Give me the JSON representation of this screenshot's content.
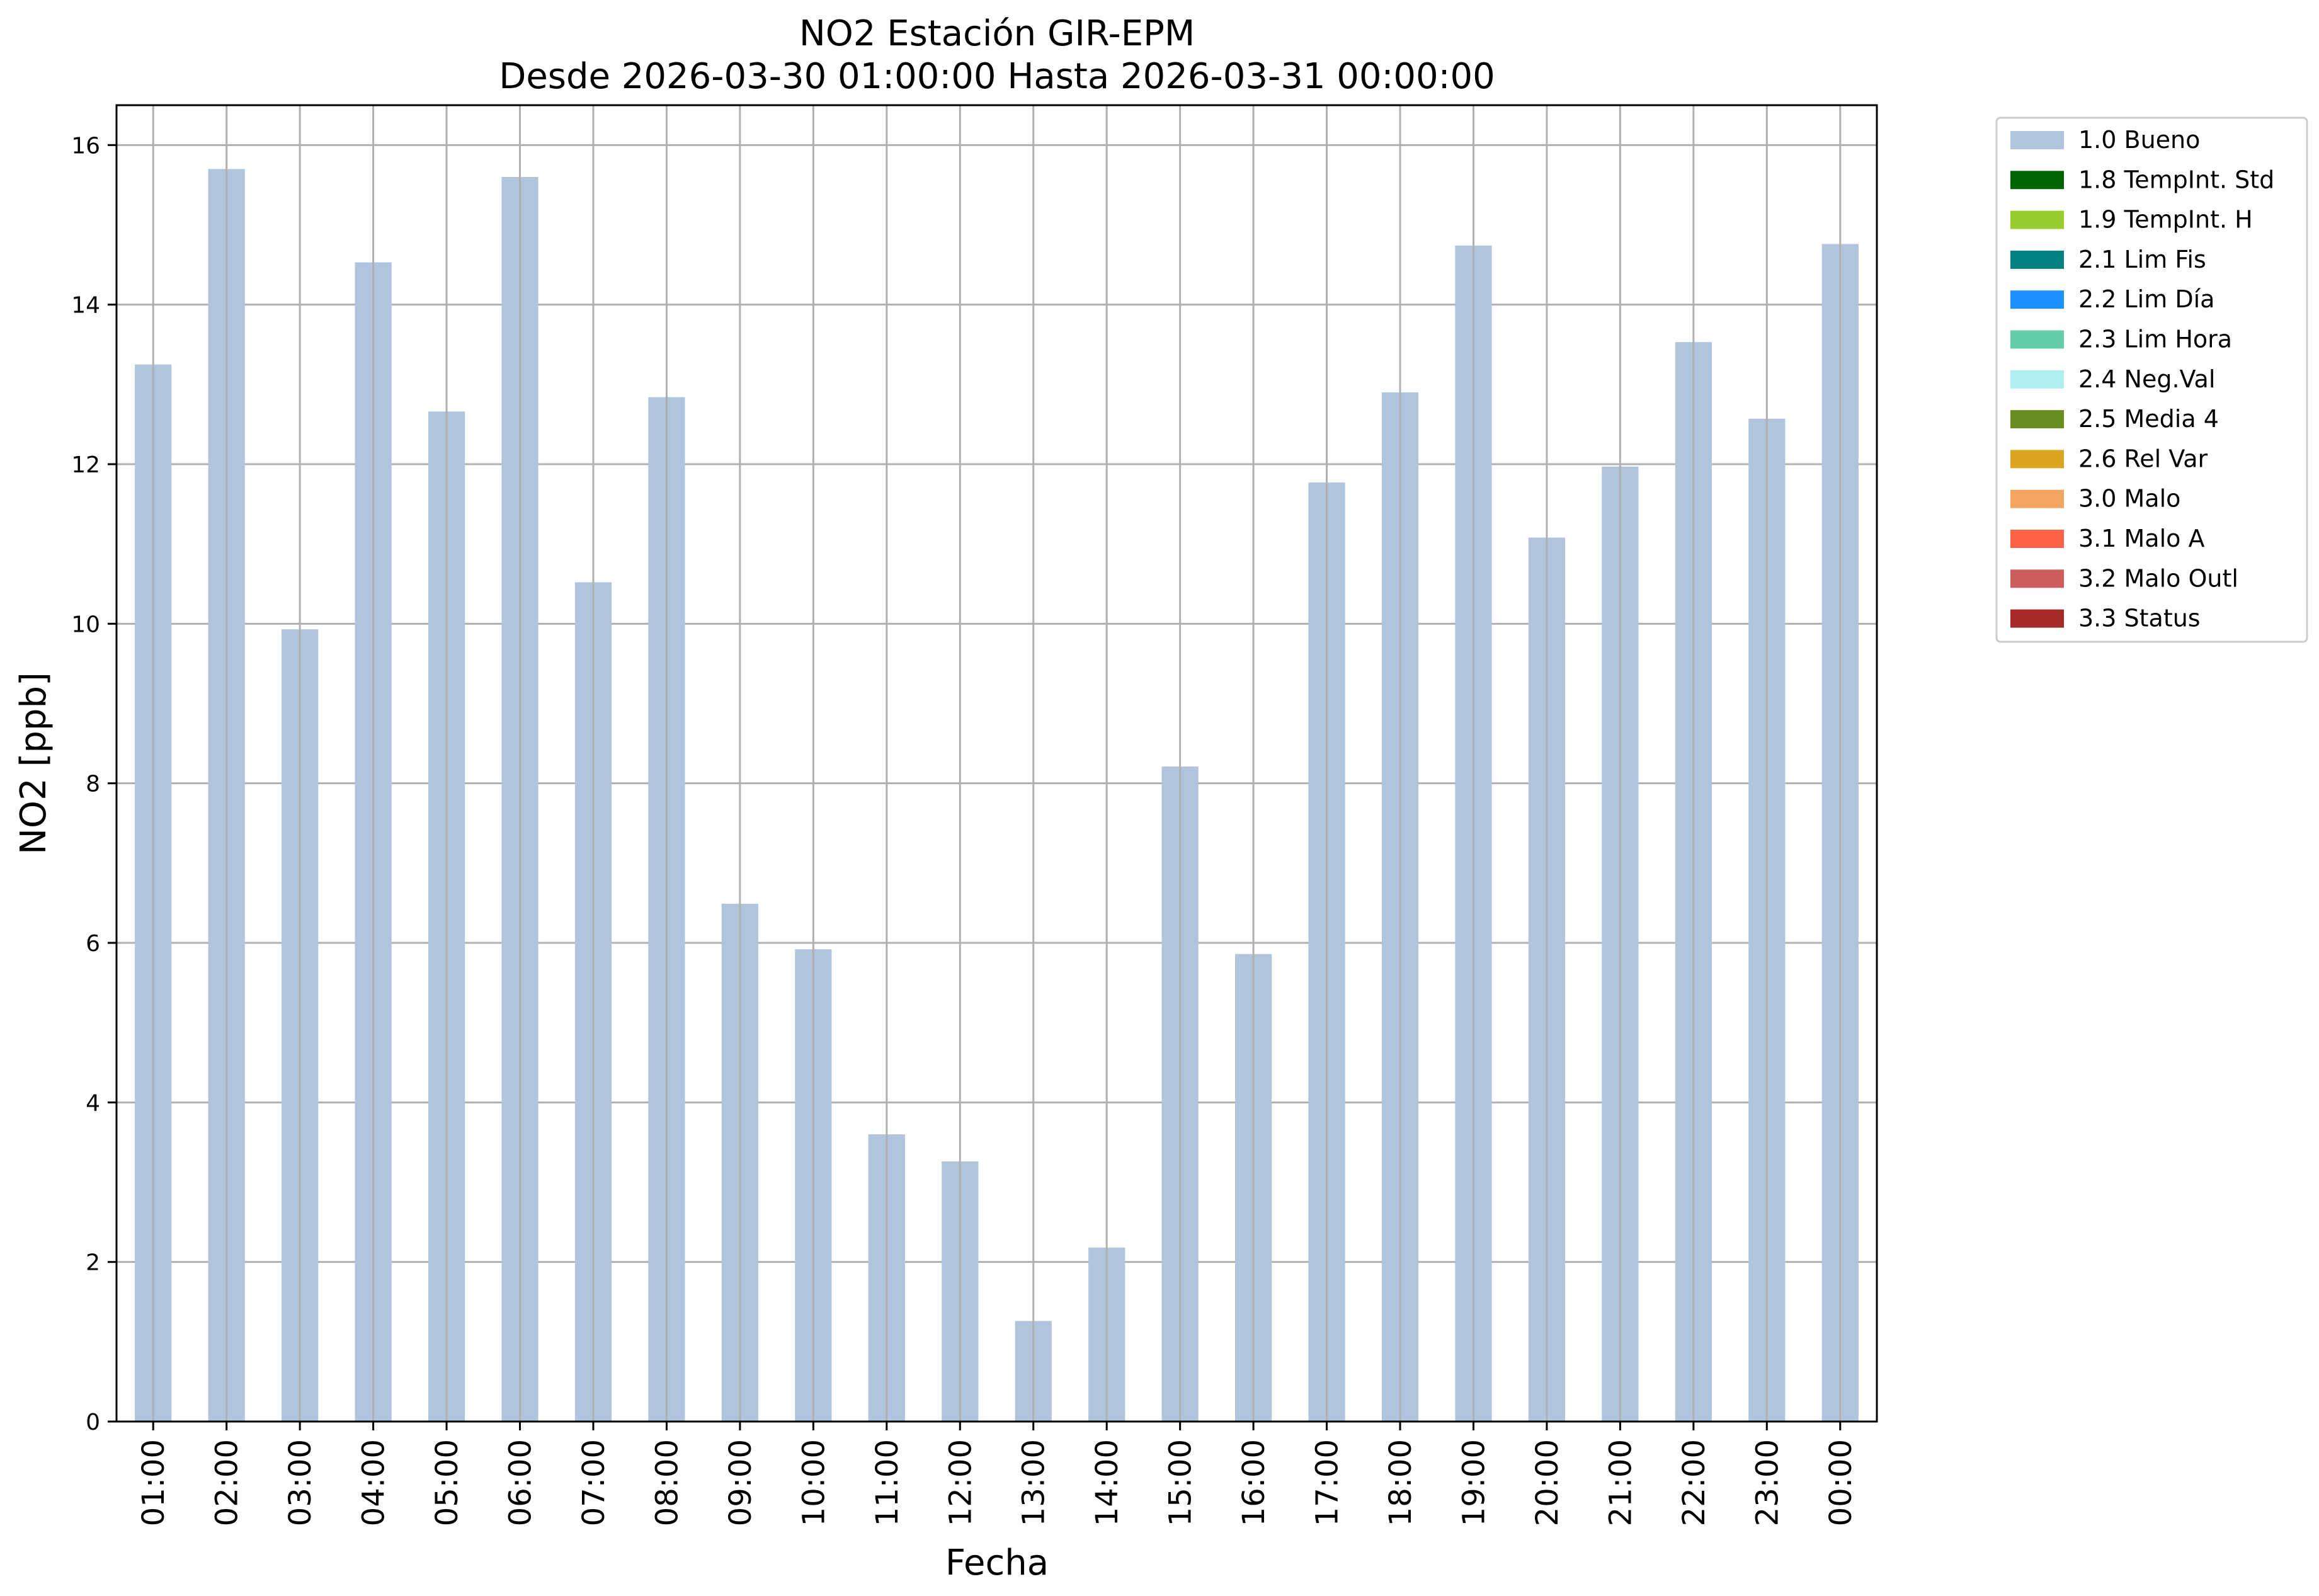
{
  "chart_data": {
    "type": "bar",
    "title": [
      "NO2 Estación GIR-EPM",
      "Desde 2026-03-30 01:00:00 Hasta 2026-03-31 00:00:00"
    ],
    "xlabel": "Fecha",
    "ylabel": "NO2 [ppb]",
    "ylim": [
      0,
      16.5
    ],
    "yticks": [
      0,
      2,
      4,
      6,
      8,
      10,
      12,
      14,
      16
    ],
    "grid": true,
    "legend_position": "outside-top-right",
    "categories": [
      "01:00",
      "02:00",
      "03:00",
      "04:00",
      "05:00",
      "06:00",
      "07:00",
      "08:00",
      "09:00",
      "10:00",
      "11:00",
      "12:00",
      "13:00",
      "14:00",
      "15:00",
      "16:00",
      "17:00",
      "18:00",
      "19:00",
      "20:00",
      "21:00",
      "22:00",
      "23:00",
      "00:00"
    ],
    "series": [
      {
        "name": "1.0 Bueno",
        "color": "#b0c4de",
        "values": [
          13.25,
          15.7,
          9.93,
          14.53,
          12.66,
          15.6,
          10.52,
          12.84,
          6.49,
          5.92,
          3.6,
          3.26,
          1.26,
          2.18,
          8.21,
          5.86,
          11.77,
          12.9,
          14.74,
          11.08,
          11.97,
          13.53,
          12.57,
          14.76
        ]
      }
    ],
    "legend": [
      {
        "label": "1.0 Bueno",
        "color": "#b0c4de"
      },
      {
        "label": "1.8 TempInt. Std",
        "color": "#006400"
      },
      {
        "label": "1.9 TempInt. H",
        "color": "#9acd32"
      },
      {
        "label": "2.1 Lim Fis",
        "color": "#008080"
      },
      {
        "label": "2.2 Lim Día",
        "color": "#1e90ff"
      },
      {
        "label": "2.3 Lim Hora",
        "color": "#66cdaa"
      },
      {
        "label": "2.4 Neg.Val",
        "color": "#afeeee"
      },
      {
        "label": "2.5 Media 4",
        "color": "#6b8e23"
      },
      {
        "label": "2.6 Rel Var",
        "color": "#daa520"
      },
      {
        "label": "3.0 Malo",
        "color": "#f4a460"
      },
      {
        "label": "3.1 Malo A",
        "color": "#ff6347"
      },
      {
        "label": "3.2 Malo Outl",
        "color": "#cd5c5c"
      },
      {
        "label": "3.3 Status",
        "color": "#a52a2a"
      }
    ]
  }
}
